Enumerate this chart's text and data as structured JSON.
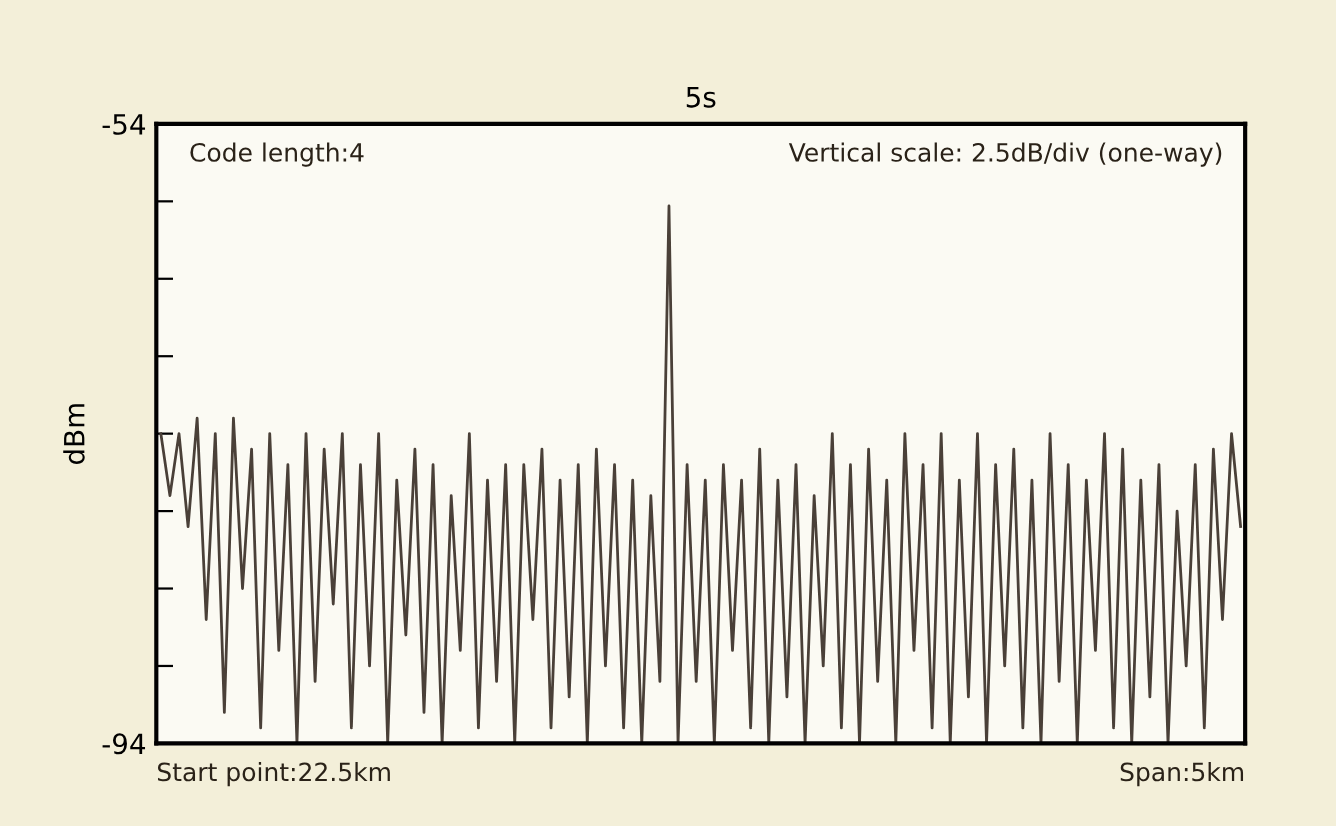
{
  "chart_data": {
    "type": "line",
    "title": "5s",
    "ylabel": "dBm",
    "annotations": [
      "Code length:4",
      "Vertical scale: 2.5dB/div (one-way)",
      "Start point:22.5km",
      "Span:5km"
    ],
    "categories": [
      null,
      null,
      null,
      null,
      null,
      null,
      null,
      null,
      null,
      null,
      null,
      null,
      null,
      null,
      null,
      null,
      null,
      null,
      null,
      null,
      null,
      null,
      null,
      null,
      null,
      null,
      null,
      null,
      null,
      null,
      null,
      null,
      null,
      null,
      null,
      null,
      null,
      null,
      null,
      null,
      null,
      null,
      null,
      null,
      null,
      null,
      null,
      null,
      null,
      null,
      null,
      null,
      null,
      null,
      null,
      null,
      null,
      null,
      null,
      null,
      null,
      null,
      null,
      null,
      null,
      null,
      null,
      null,
      null,
      null,
      null,
      null,
      null,
      null,
      null,
      null,
      null,
      null,
      null,
      null,
      null,
      null,
      null,
      null,
      null,
      null,
      null,
      null,
      null,
      null,
      null,
      null,
      null,
      null,
      null,
      null,
      null,
      null,
      null,
      null,
      null,
      null,
      null,
      null,
      null,
      null,
      null,
      null,
      null,
      null,
      null,
      null,
      null,
      null,
      null,
      null,
      null,
      null,
      null,
      null
    ],
    "series": [
      {
        "color": "#4a4038",
        "values": [
          -74,
          -78,
          -74,
          -80,
          -73,
          -86,
          -74,
          -92,
          -73,
          -84,
          -75,
          -93,
          -74,
          -88,
          -76,
          -94,
          -74,
          -90,
          -75,
          -85,
          -74,
          -93,
          -76,
          -89,
          -74,
          -94,
          -77,
          -87,
          -75,
          -92,
          -76,
          -94,
          -78,
          -88,
          -74,
          -93,
          -77,
          -90,
          -76,
          -94,
          -76,
          -86,
          -75,
          -93,
          -77,
          -91,
          -76,
          -94,
          -75,
          -89,
          -76,
          -93,
          -77,
          -94,
          -78,
          -90,
          -59.3,
          -94,
          -76,
          -90,
          -77,
          -94,
          -76,
          -88,
          -77,
          -93,
          -75,
          -94,
          -77,
          -91,
          -76,
          -94,
          -78,
          -89,
          -74,
          -93,
          -76,
          -94,
          -75,
          -90,
          -77,
          -94,
          -74,
          -88,
          -76,
          -93,
          -74,
          -94,
          -77,
          -91,
          -74,
          -94,
          -76,
          -89,
          -75,
          -93,
          -77,
          -94,
          -74,
          -90,
          -76,
          -94,
          -77,
          -88,
          -74,
          -93,
          -75,
          -94,
          -77,
          -91,
          -76,
          -94,
          -79,
          -89,
          -76,
          -93,
          -75,
          -86,
          -74,
          -80
        ]
      }
    ],
    "ylim": [
      -94,
      -54
    ],
    "yticks": [
      -54,
      {
        "value": -59,
        "label": null
      },
      {
        "value": -64,
        "label": null
      },
      {
        "value": -69,
        "label": null
      },
      {
        "value": -74,
        "label": null
      },
      {
        "value": -79,
        "label": null
      },
      {
        "value": -84,
        "label": null
      },
      {
        "value": -89,
        "label": null
      },
      -94
    ],
    "grid": false,
    "legend": false,
    "marker": "none",
    "line_style": "solid"
  }
}
